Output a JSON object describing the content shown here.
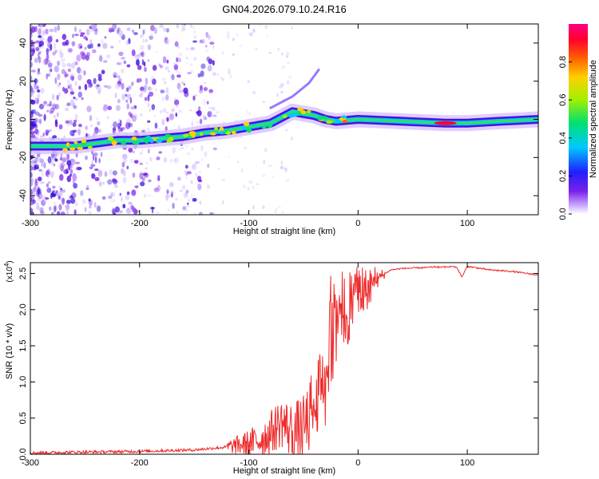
{
  "chart_data": [
    {
      "type": "heatmap",
      "title": "GN04.2026.079.10.24.R16",
      "xlabel": "Height of straight line (km)",
      "ylabel": "Frequency (Hz)",
      "xlim": [
        -300,
        165
      ],
      "ylim": [
        -50,
        50
      ],
      "xticks": [
        -300,
        -200,
        -100,
        0,
        100
      ],
      "yticks": [
        -40,
        -20,
        0,
        20,
        40
      ],
      "colorbar": {
        "label": "Normalized spectral amplitude",
        "range": [
          0,
          1
        ],
        "ticks": [
          0.0,
          0.2,
          0.4,
          0.6,
          0.8
        ],
        "colors": [
          "#ffffff",
          "#c4a0ff",
          "#7a20e8",
          "#2020ff",
          "#00c8ff",
          "#00e070",
          "#a0f000",
          "#ffd000",
          "#ff6000",
          "#ff0030",
          "#ff0080"
        ]
      },
      "ridge": [
        {
          "x": -300,
          "f": -14
        },
        {
          "x": -260,
          "f": -14
        },
        {
          "x": -220,
          "f": -11
        },
        {
          "x": -200,
          "f": -11
        },
        {
          "x": -180,
          "f": -10
        },
        {
          "x": -160,
          "f": -9
        },
        {
          "x": -140,
          "f": -7
        },
        {
          "x": -120,
          "f": -6
        },
        {
          "x": -100,
          "f": -4
        },
        {
          "x": -80,
          "f": -2
        },
        {
          "x": -70,
          "f": 1
        },
        {
          "x": -60,
          "f": 4
        },
        {
          "x": -50,
          "f": 3
        },
        {
          "x": -40,
          "f": 2
        },
        {
          "x": -30,
          "f": 0
        },
        {
          "x": -20,
          "f": -1
        },
        {
          "x": 0,
          "f": 0
        },
        {
          "x": 40,
          "f": -1
        },
        {
          "x": 80,
          "f": -2
        },
        {
          "x": 100,
          "f": -2
        },
        {
          "x": 130,
          "f": -1
        },
        {
          "x": 165,
          "f": 0
        }
      ],
      "branch": [
        {
          "x": -80,
          "f": 6
        },
        {
          "x": -60,
          "f": 12
        },
        {
          "x": -45,
          "f": 19
        },
        {
          "x": -36,
          "f": 26
        }
      ]
    },
    {
      "type": "line",
      "xlabel": "Height of straight line (km)",
      "ylabel": "SNR (10 * v/v)",
      "y_multiplier": "(x10",
      "y_multiplier_exp": "4",
      "y_multiplier_close": ")",
      "xlim": [
        -300,
        165
      ],
      "ylim": [
        0,
        2.65
      ],
      "xticks": [
        -300,
        -200,
        -100,
        0,
        100
      ],
      "yticks": [
        0.0,
        0.5,
        1.0,
        1.5,
        2.0,
        2.5
      ],
      "series": [
        {
          "name": "SNR",
          "color": "#ee2a2a",
          "x": [
            -300,
            -250,
            -200,
            -150,
            -120,
            -100,
            -90,
            -80,
            -70,
            -60,
            -50,
            -45,
            -40,
            -35,
            -30,
            -25,
            -20,
            -15,
            -10,
            -5,
            0,
            10,
            20,
            25,
            30,
            40,
            60,
            80,
            90,
            95,
            100,
            120,
            140,
            165
          ],
          "y": [
            0.02,
            0.03,
            0.04,
            0.06,
            0.1,
            0.15,
            0.2,
            0.3,
            0.45,
            0.3,
            0.35,
            0.5,
            0.65,
            0.9,
            1.2,
            1.5,
            1.7,
            1.85,
            2.0,
            2.1,
            2.2,
            2.3,
            2.45,
            2.5,
            2.55,
            2.57,
            2.58,
            2.6,
            2.6,
            2.45,
            2.6,
            2.55,
            2.53,
            2.48
          ]
        }
      ]
    }
  ]
}
